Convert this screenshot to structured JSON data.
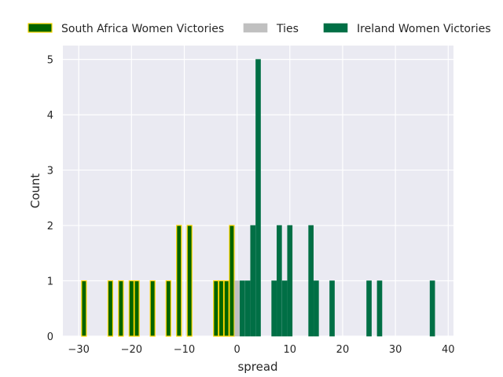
{
  "chart_data": {
    "type": "bar",
    "xlabel": "spread",
    "ylabel": "Count",
    "xlim": [
      -33,
      41
    ],
    "ylim": [
      0,
      5.25
    ],
    "xticks": [
      -30,
      -20,
      -10,
      0,
      10,
      20,
      30,
      40
    ],
    "yticks": [
      0,
      1,
      2,
      3,
      4,
      5
    ],
    "xtick_labels": [
      "−30",
      "−20",
      "−10",
      "0",
      "10",
      "20",
      "30",
      "40"
    ],
    "ytick_labels": [
      "0",
      "1",
      "2",
      "3",
      "4",
      "5"
    ],
    "grid": true,
    "legend_position": "top",
    "bin_width": 0.9,
    "series": [
      {
        "name": "South Africa Women Victories",
        "color": "#006400",
        "edge_color": "#ffd700",
        "bins": [
          {
            "x": -29,
            "count": 1
          },
          {
            "x": -24,
            "count": 1
          },
          {
            "x": -22,
            "count": 1
          },
          {
            "x": -20,
            "count": 1
          },
          {
            "x": -19,
            "count": 1
          },
          {
            "x": -16,
            "count": 1
          },
          {
            "x": -13,
            "count": 1
          },
          {
            "x": -11,
            "count": 2
          },
          {
            "x": -9,
            "count": 2
          },
          {
            "x": -4,
            "count": 1
          },
          {
            "x": -3,
            "count": 1
          },
          {
            "x": -2,
            "count": 1
          },
          {
            "x": -1,
            "count": 2
          }
        ]
      },
      {
        "name": "Ties",
        "color": "#c0c0c0",
        "edge_color": "#c0c0c0",
        "bins": [
          {
            "x": 0,
            "count": 1
          }
        ]
      },
      {
        "name": "Ireland Women Victories",
        "color": "#006f45",
        "edge_color": "#006f45",
        "bins": [
          {
            "x": 1,
            "count": 1
          },
          {
            "x": 2,
            "count": 1
          },
          {
            "x": 3,
            "count": 2
          },
          {
            "x": 4,
            "count": 5
          },
          {
            "x": 7,
            "count": 1
          },
          {
            "x": 8,
            "count": 2
          },
          {
            "x": 9,
            "count": 1
          },
          {
            "x": 10,
            "count": 2
          },
          {
            "x": 14,
            "count": 2
          },
          {
            "x": 15,
            "count": 1
          },
          {
            "x": 18,
            "count": 1
          },
          {
            "x": 25,
            "count": 1
          },
          {
            "x": 27,
            "count": 1
          },
          {
            "x": 37,
            "count": 1
          }
        ]
      }
    ]
  }
}
